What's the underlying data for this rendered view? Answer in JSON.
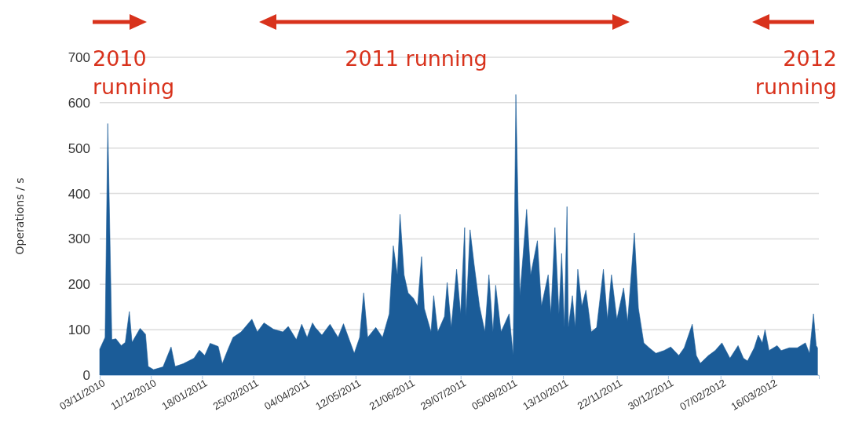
{
  "chart_data": {
    "type": "area",
    "ylabel": "Operations / s",
    "annotations": [
      "2010 running",
      "2011 running",
      "2012 running"
    ],
    "x": [
      "2010-11-03",
      "2010-11-07",
      "2010-11-09",
      "2010-11-12",
      "2010-11-15",
      "2010-11-19",
      "2010-11-22",
      "2010-11-25",
      "2010-11-27",
      "2010-12-03",
      "2010-12-07",
      "2010-12-09",
      "2010-12-13",
      "2010-12-20",
      "2010-12-26",
      "2010-12-29",
      "2011-01-04",
      "2011-01-12",
      "2011-01-16",
      "2011-01-20",
      "2011-01-24",
      "2011-01-30",
      "2011-02-02",
      "2011-02-06",
      "2011-02-10",
      "2011-02-16",
      "2011-02-24",
      "2011-02-28",
      "2011-03-05",
      "2011-03-12",
      "2011-03-19",
      "2011-03-23",
      "2011-03-29",
      "2011-04-02",
      "2011-04-06",
      "2011-04-10",
      "2011-04-12",
      "2011-04-17",
      "2011-04-23",
      "2011-04-29",
      "2011-05-03",
      "2011-05-11",
      "2011-05-15",
      "2011-05-18",
      "2011-05-21",
      "2011-05-27",
      "2011-06-01",
      "2011-06-06",
      "2011-06-09",
      "2011-06-12",
      "2011-06-14",
      "2011-06-17",
      "2011-06-20",
      "2011-06-24",
      "2011-06-27",
      "2011-06-30",
      "2011-07-02",
      "2011-07-07",
      "2011-07-09",
      "2011-07-12",
      "2011-07-17",
      "2011-07-19",
      "2011-07-22",
      "2011-07-26",
      "2011-07-29",
      "2011-08-01",
      "2011-08-02",
      "2011-08-05",
      "2011-08-08",
      "2011-08-12",
      "2011-08-16",
      "2011-08-19",
      "2011-08-22",
      "2011-08-24",
      "2011-08-28",
      "2011-09-03",
      "2011-09-06",
      "2011-09-08",
      "2011-09-11",
      "2011-09-16",
      "2011-09-19",
      "2011-09-24",
      "2011-09-27",
      "2011-10-02",
      "2011-10-04",
      "2011-10-07",
      "2011-10-10",
      "2011-10-12",
      "2011-10-14",
      "2011-10-16",
      "2011-10-17",
      "2011-10-20",
      "2011-10-22",
      "2011-10-24",
      "2011-10-27",
      "2011-10-30",
      "2011-11-03",
      "2011-11-07",
      "2011-11-12",
      "2011-11-15",
      "2011-11-18",
      "2011-11-22",
      "2011-11-27",
      "2011-11-30",
      "2011-12-05",
      "2011-12-08",
      "2011-12-12",
      "2011-12-16",
      "2011-12-21",
      "2011-12-27",
      "2012-01-01",
      "2012-01-07",
      "2012-01-11",
      "2012-01-17",
      "2012-01-20",
      "2012-01-23",
      "2012-01-29",
      "2012-02-03",
      "2012-02-08",
      "2012-02-14",
      "2012-02-20",
      "2012-02-24",
      "2012-02-27",
      "2012-03-03",
      "2012-03-06",
      "2012-03-09",
      "2012-03-11",
      "2012-03-14",
      "2012-03-20",
      "2012-03-23",
      "2012-03-29",
      "2012-04-04",
      "2012-04-10",
      "2012-04-13",
      "2012-04-16",
      "2012-04-18",
      "2012-04-19"
    ],
    "series": [
      {
        "color": "#1b5c98",
        "values": [
          57,
          83,
          554,
          78,
          80,
          65,
          72,
          140,
          72,
          103,
          90,
          19,
          12,
          18,
          62,
          19,
          25,
          37,
          55,
          43,
          70,
          63,
          25,
          55,
          83,
          95,
          123,
          95,
          115,
          101,
          95,
          107,
          78,
          112,
          83,
          115,
          105,
          88,
          112,
          83,
          113,
          48,
          83,
          181,
          83,
          105,
          83,
          135,
          285,
          221,
          354,
          221,
          181,
          169,
          152,
          261,
          147,
          95,
          175,
          95,
          129,
          204,
          105,
          233,
          135,
          325,
          129,
          320,
          244,
          152,
          95,
          221,
          95,
          198,
          95,
          135,
          43,
          618,
          175,
          365,
          221,
          296,
          152,
          221,
          135,
          325,
          135,
          268,
          105,
          371,
          105,
          175,
          105,
          233,
          152,
          187,
          95,
          105,
          233,
          123,
          221,
          123,
          192,
          118,
          313,
          147,
          71,
          60,
          48,
          54,
          62,
          43,
          60,
          112,
          43,
          26,
          43,
          54,
          71,
          37,
          65,
          37,
          31,
          60,
          88,
          71,
          100,
          54,
          65,
          54,
          60,
          60,
          71,
          48,
          135,
          65,
          60
        ]
      }
    ],
    "xlim": [
      "2010-11-03",
      "2012-04-20"
    ],
    "xticks": [
      {
        "value": "2010-11-03",
        "label": "03/11/2010"
      },
      {
        "value": "2010-12-11",
        "label": "11/12/2010"
      },
      {
        "value": "2011-01-18",
        "label": "18/01/2011"
      },
      {
        "value": "2011-02-25",
        "label": "25/02/2011"
      },
      {
        "value": "2011-04-04",
        "label": "04/04/2011"
      },
      {
        "value": "2011-05-12",
        "label": "12/05/2011"
      },
      {
        "value": "2011-06-21",
        "label": "21/06/2011"
      },
      {
        "value": "2011-07-29",
        "label": "29/07/2011"
      },
      {
        "value": "2011-09-05",
        "label": "05/09/2011"
      },
      {
        "value": "2011-10-13",
        "label": "13/10/2011"
      },
      {
        "value": "2011-11-22",
        "label": "22/11/2011"
      },
      {
        "value": "2011-12-30",
        "label": "30/12/2011"
      },
      {
        "value": "2012-02-07",
        "label": "07/02/2012"
      },
      {
        "value": "2012-03-16",
        "label": "16/03/2012"
      }
    ],
    "ylim": [
      0,
      700
    ],
    "yticks": [
      0,
      100,
      200,
      300,
      400,
      500,
      600,
      700
    ],
    "grid": "y"
  }
}
